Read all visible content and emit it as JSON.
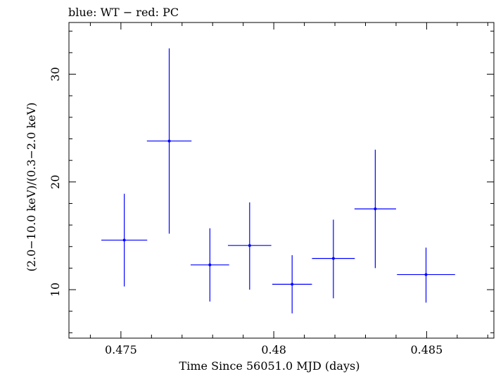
{
  "chart_data": {
    "type": "scatter",
    "title": "blue: WT − red: PC",
    "xlabel": "Time Since 56051.0 MJD (days)",
    "ylabel": "(2.0−10.0 keV)/(0.3−2.0 keV)",
    "xlim": [
      0.4733,
      0.4872
    ],
    "ylim": [
      5.5,
      34.8
    ],
    "x_ticks": [
      0.475,
      0.48,
      0.485
    ],
    "x_tick_labels": [
      "0.475",
      "0.48",
      "0.485"
    ],
    "y_ticks": [
      10,
      20,
      30
    ],
    "y_tick_labels": [
      "10",
      "20",
      "30"
    ],
    "grid": false,
    "series": [
      {
        "name": "WT",
        "color": "#0000ff",
        "points": [
          {
            "x": 0.47511,
            "xerr": 0.00075,
            "y": 14.6,
            "ylo": 10.3,
            "yhi": 18.9
          },
          {
            "x": 0.47658,
            "xerr": 0.00073,
            "y": 23.8,
            "ylo": 15.2,
            "yhi": 32.4
          },
          {
            "x": 0.47791,
            "xerr": 0.00063,
            "y": 12.3,
            "ylo": 8.9,
            "yhi": 15.7
          },
          {
            "x": 0.47921,
            "xerr": 0.00071,
            "y": 14.1,
            "ylo": 10.0,
            "yhi": 18.1
          },
          {
            "x": 0.4806,
            "xerr": 0.00065,
            "y": 10.5,
            "ylo": 7.8,
            "yhi": 13.2
          },
          {
            "x": 0.48195,
            "xerr": 0.0007,
            "y": 12.9,
            "ylo": 9.2,
            "yhi": 16.5
          },
          {
            "x": 0.48332,
            "xerr": 0.00068,
            "y": 17.5,
            "ylo": 12.0,
            "yhi": 23.0
          },
          {
            "x": 0.48498,
            "xerr": 0.00095,
            "y": 11.4,
            "ylo": 8.8,
            "yhi": 13.9
          }
        ]
      }
    ]
  }
}
